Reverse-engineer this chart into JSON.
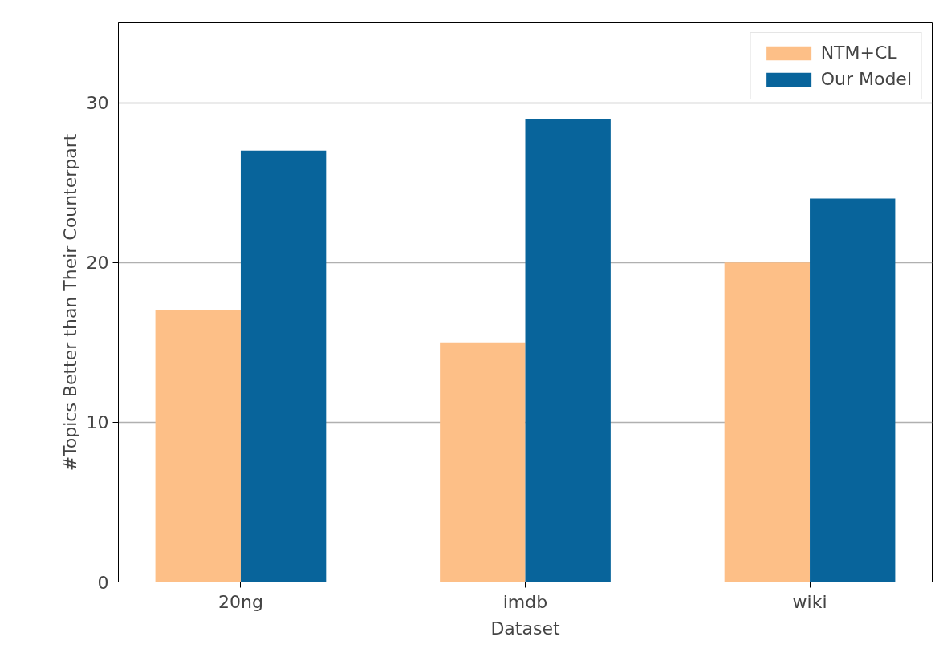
{
  "chart_data": {
    "type": "bar",
    "xlabel": "Dataset",
    "ylabel": "#Topics Better than Their Counterpart",
    "categories": [
      "20ng",
      "imdb",
      "wiki"
    ],
    "series": [
      {
        "name": "NTM+CL",
        "color": "#fdbf87",
        "values": [
          17,
          15,
          20
        ]
      },
      {
        "name": "Our Model",
        "color": "#08649b",
        "values": [
          27,
          29,
          24
        ]
      }
    ],
    "ylim": [
      0,
      35
    ],
    "yticks": [
      0,
      10,
      20,
      30
    ],
    "grid": "y",
    "legend": "top right"
  }
}
